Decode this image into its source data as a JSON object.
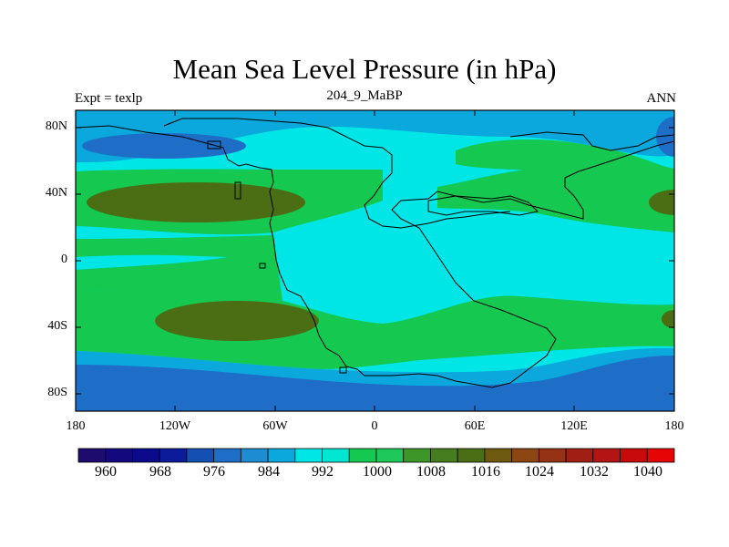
{
  "title": "Mean Sea Level Pressure (in hPa)",
  "subtitle_left": "Expt = texlp",
  "subtitle_center": "204_9_MaBP",
  "subtitle_right": "ANN",
  "axes": {
    "lat_labels": [
      "80N",
      "40N",
      "0",
      "40S",
      "80S"
    ],
    "lon_labels": [
      "180",
      "120W",
      "60W",
      "0",
      "60E",
      "120E",
      "180"
    ]
  },
  "colorbar": {
    "labels": [
      "960",
      "968",
      "976",
      "984",
      "992",
      "1000",
      "1008",
      "1016",
      "1024",
      "1032",
      "1040"
    ],
    "colors": [
      "#1e0b6e",
      "#14087e",
      "#0b0a8c",
      "#0b1b9b",
      "#1450b4",
      "#1e6ec8",
      "#1e8cd2",
      "#0aa8dc",
      "#00e6e6",
      "#00e6d2",
      "#14c850",
      "#1ec85a",
      "#3c9628",
      "#467d1e",
      "#4b6e14",
      "#6e5a0f",
      "#8c4614",
      "#963214",
      "#a01e14",
      "#b41414",
      "#c80a0a",
      "#e60505"
    ],
    "shading_colors": {
      "deep_low": "#1450b4",
      "low": "#1e6ec8",
      "mid_low": "#0aa8dc",
      "cyan": "#00e6e6",
      "green": "#14c850",
      "dark_green": "#3c9628",
      "olive": "#4b6e14",
      "brown": "#6e5a0f"
    }
  },
  "chart_data": {
    "type": "heatmap",
    "variable": "Mean Sea Level Pressure",
    "units": "hPa",
    "experiment": "texlp",
    "period": "204_9_MaBP",
    "season": "ANN",
    "x_range": [
      -180,
      180
    ],
    "y_range": [
      -90,
      90
    ],
    "x_ticks": [
      -180,
      -120,
      -60,
      0,
      60,
      120,
      180
    ],
    "y_ticks": [
      80,
      40,
      0,
      -40,
      -80
    ],
    "colorbar_levels": [
      960,
      968,
      976,
      984,
      992,
      1000,
      1008,
      1016,
      1024,
      1032,
      1040
    ]
  }
}
